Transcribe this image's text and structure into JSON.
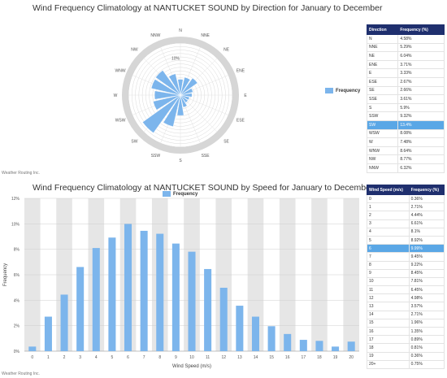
{
  "direction_chart": {
    "title": "Wind Frequency Climatology at NANTUCKET SOUND by Direction for January to December",
    "credit": "Weather Routing Inc.",
    "legend": "Frequency",
    "ring_label": "10%"
  },
  "speed_chart": {
    "title": "Wind Frequency Climatology at NANTUCKET SOUND by Speed for January to December",
    "credit": "Weather Routing Inc.",
    "legend": "Frequency",
    "xlabel": "Wind Speed (m/s)",
    "ylabel": "Frequency"
  },
  "direction_table": {
    "headers": [
      "Direction",
      "Frequency (%)"
    ],
    "highlight_index": 10,
    "rows": [
      [
        "N",
        "4.58%"
      ],
      [
        "NNE",
        "5.29%"
      ],
      [
        "NE",
        "6.04%"
      ],
      [
        "ENE",
        "3.71%"
      ],
      [
        "E",
        "3.33%"
      ],
      [
        "ESE",
        "2.67%"
      ],
      [
        "SE",
        "2.66%"
      ],
      [
        "SSE",
        "3.61%"
      ],
      [
        "S",
        "5.9%"
      ],
      [
        "SSW",
        "9.32%"
      ],
      [
        "SW",
        "13.4%"
      ],
      [
        "WSW",
        "8.08%"
      ],
      [
        "W",
        "7.48%"
      ],
      [
        "WNW",
        "8.64%"
      ],
      [
        "NW",
        "8.77%"
      ],
      [
        "NNW",
        "6.32%"
      ]
    ]
  },
  "speed_table": {
    "headers": [
      "Wind Speed (m/s)",
      "Frequency (%)"
    ],
    "highlight_index": 6,
    "rows": [
      [
        "0",
        "0.36%"
      ],
      [
        "1",
        "2.71%"
      ],
      [
        "2",
        "4.44%"
      ],
      [
        "3",
        "6.61%"
      ],
      [
        "4",
        "8.1%"
      ],
      [
        "5",
        "8.92%"
      ],
      [
        "6",
        "9.99%"
      ],
      [
        "7",
        "9.45%"
      ],
      [
        "8",
        "9.22%"
      ],
      [
        "9",
        "8.45%"
      ],
      [
        "10",
        "7.81%"
      ],
      [
        "11",
        "6.45%"
      ],
      [
        "12",
        "4.98%"
      ],
      [
        "13",
        "3.57%"
      ],
      [
        "14",
        "2.71%"
      ],
      [
        "15",
        "1.96%"
      ],
      [
        "16",
        "1.35%"
      ],
      [
        "17",
        "0.89%"
      ],
      [
        "18",
        "0.81%"
      ],
      [
        "19",
        "0.36%"
      ],
      [
        "20+",
        "0.75%"
      ]
    ]
  },
  "chart_data": [
    {
      "type": "polar-bar",
      "title": "Wind Frequency Climatology at NANTUCKET SOUND by Direction for January to December",
      "categories": [
        "N",
        "NNE",
        "NE",
        "ENE",
        "E",
        "ESE",
        "SE",
        "SSE",
        "S",
        "SSW",
        "SW",
        "WSW",
        "W",
        "WNW",
        "NW",
        "NNW"
      ],
      "series": [
        {
          "name": "Frequency",
          "values": [
            4.58,
            5.29,
            6.04,
            3.71,
            3.33,
            2.67,
            2.66,
            3.61,
            5.9,
            9.32,
            13.4,
            8.08,
            7.48,
            8.64,
            8.77,
            6.32
          ]
        }
      ],
      "rlim": [
        0,
        15
      ],
      "legend_position": "right",
      "color": "#7cb5ec"
    },
    {
      "type": "bar",
      "title": "Wind Frequency Climatology at NANTUCKET SOUND by Speed for January to December",
      "categories": [
        "0",
        "1",
        "2",
        "3",
        "4",
        "5",
        "6",
        "7",
        "8",
        "9",
        "10",
        "11",
        "12",
        "13",
        "14",
        "15",
        "16",
        "17",
        "18",
        "19",
        "20"
      ],
      "series": [
        {
          "name": "Frequency",
          "values": [
            0.36,
            2.71,
            4.44,
            6.61,
            8.1,
            8.92,
            9.99,
            9.45,
            9.22,
            8.45,
            7.81,
            6.45,
            4.98,
            3.57,
            2.71,
            1.96,
            1.35,
            0.89,
            0.81,
            0.36,
            0.75
          ]
        }
      ],
      "xlabel": "Wind Speed (m/s)",
      "ylabel": "Frequency",
      "ylim": [
        0,
        12
      ],
      "yticks": [
        "0%",
        "2%",
        "4%",
        "6%",
        "8%",
        "10%",
        "12%"
      ],
      "grid": true,
      "alternating_bands": true,
      "legend_position": "top-center",
      "color": "#7cb5ec"
    }
  ]
}
